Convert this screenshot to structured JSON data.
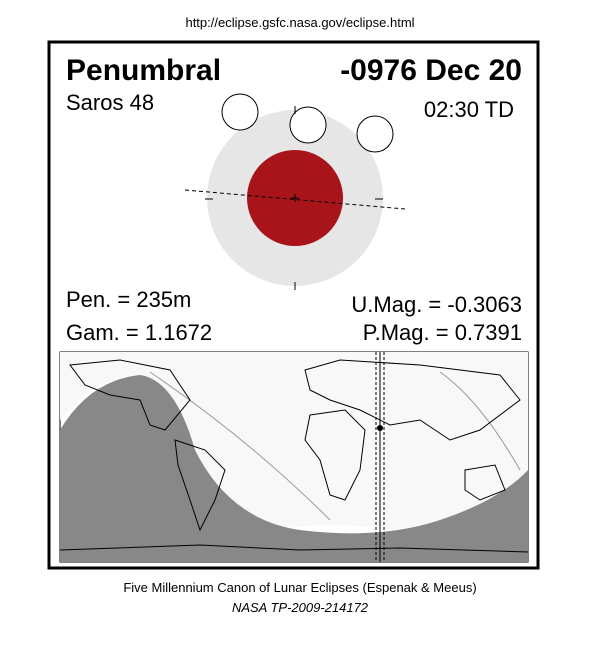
{
  "header": {
    "url": "http://eclipse.gsfc.nasa.gov/eclipse.html"
  },
  "panel": {
    "eclipse_type": "Penumbral",
    "date": "-0976 Dec 20",
    "saros": "Saros  48",
    "time": "02:30 TD",
    "pen": "Pen. = 235m",
    "gam": "Gam. = 1.1672",
    "umag": "U.Mag. = -0.3063",
    "pmag": "P.Mag. = 0.7391"
  },
  "footer": {
    "canon": "Five Millennium Canon of Lunar Eclipses (Espenak & Meeus)",
    "publication": "NASA TP-2009-214172"
  }
}
